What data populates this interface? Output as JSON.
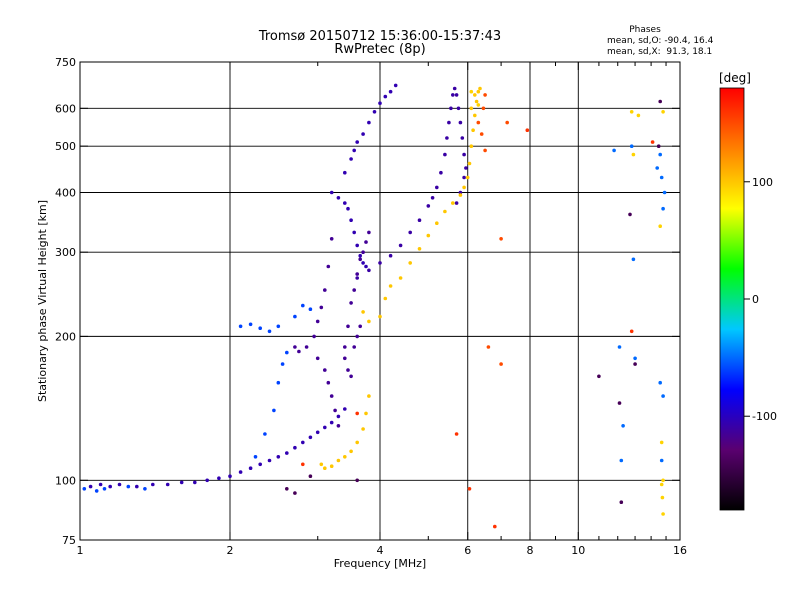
{
  "chart_data": {
    "type": "scatter",
    "title": "Tromsø 20150712 15:36:00-15:37:43",
    "subtitle": "RwPretec (8p)",
    "xlabel": "Frequency [MHz]",
    "ylabel": "Stationary phase Virtual Height [km]",
    "x_scale": "log",
    "y_scale": "log",
    "xlim": [
      1,
      16
    ],
    "ylim": [
      75,
      750
    ],
    "x_ticks": [
      {
        "v": 1,
        "label": "1"
      },
      {
        "v": 2,
        "label": "2"
      },
      {
        "v": 4,
        "label": "4"
      },
      {
        "v": 6,
        "label": "6"
      },
      {
        "v": 8,
        "label": "8"
      },
      {
        "v": 10,
        "label": "10"
      },
      {
        "v": 16,
        "label": "16"
      }
    ],
    "x_minor": [
      3,
      5,
      7,
      9,
      11,
      12,
      13,
      14,
      15
    ],
    "x_grid": [
      2,
      4,
      6,
      8,
      10
    ],
    "y_ticks": [
      {
        "v": 75,
        "label": "75"
      },
      {
        "v": 100,
        "label": "100"
      },
      {
        "v": 200,
        "label": "200"
      },
      {
        "v": 300,
        "label": "300"
      },
      {
        "v": 400,
        "label": "400"
      },
      {
        "v": 500,
        "label": "500"
      },
      {
        "v": 600,
        "label": "600"
      },
      {
        "v": 750,
        "label": "750"
      }
    ],
    "y_grid": [
      100,
      200,
      300,
      400,
      500,
      600
    ],
    "grid": true,
    "stats": {
      "title": "Phases",
      "line_o": "mean, sd,O: -90.4, 16.4",
      "line_x": "mean, sd,X:  91.3, 18.1"
    },
    "colorbar": {
      "label": "[deg]",
      "range": [
        -180,
        180
      ],
      "ticks": [
        {
          "v": 100,
          "label": "100"
        },
        {
          "v": 0,
          "label": "0"
        },
        {
          "v": -100,
          "label": "-100"
        }
      ],
      "colors": [
        "#000000",
        "#5a0070",
        "#0000ff",
        "#00c8ff",
        "#00ff00",
        "#ffff00",
        "#ff8000",
        "#ff0000"
      ]
    },
    "series": [
      {
        "phase": -105,
        "points": [
          [
            1.05,
            97
          ],
          [
            1.1,
            98
          ],
          [
            1.15,
            97
          ],
          [
            1.2,
            98
          ],
          [
            1.3,
            97
          ],
          [
            1.4,
            98
          ],
          [
            1.5,
            98
          ],
          [
            1.6,
            99
          ],
          [
            1.7,
            99
          ],
          [
            1.8,
            100
          ],
          [
            1.9,
            101
          ],
          [
            2.0,
            102
          ],
          [
            2.1,
            104
          ],
          [
            2.2,
            106
          ],
          [
            2.3,
            108
          ],
          [
            2.4,
            110
          ],
          [
            2.5,
            112
          ],
          [
            2.6,
            114
          ],
          [
            2.7,
            117
          ],
          [
            2.8,
            120
          ],
          [
            2.9,
            123
          ],
          [
            3.0,
            126
          ],
          [
            3.1,
            129
          ],
          [
            3.2,
            132
          ],
          [
            3.3,
            136
          ],
          [
            3.4,
            141
          ]
        ]
      },
      {
        "phase": -60,
        "points": [
          [
            1.02,
            96
          ],
          [
            1.08,
            95
          ],
          [
            1.12,
            96
          ],
          [
            1.25,
            97
          ],
          [
            1.35,
            96
          ],
          [
            2.25,
            112
          ],
          [
            2.35,
            125
          ],
          [
            2.45,
            140
          ],
          [
            2.5,
            160
          ],
          [
            2.55,
            175
          ],
          [
            2.6,
            185
          ],
          [
            2.1,
            210
          ],
          [
            2.2,
            212
          ],
          [
            2.3,
            208
          ],
          [
            2.4,
            205
          ],
          [
            2.5,
            210
          ],
          [
            2.7,
            220
          ],
          [
            2.8,
            232
          ],
          [
            2.9,
            228
          ]
        ]
      },
      {
        "phase": -115,
        "points": [
          [
            2.7,
            190
          ],
          [
            2.75,
            186
          ],
          [
            2.85,
            190
          ],
          [
            2.95,
            200
          ],
          [
            3.0,
            215
          ],
          [
            3.05,
            230
          ],
          [
            3.1,
            250
          ],
          [
            3.15,
            280
          ],
          [
            3.2,
            320
          ],
          [
            3.0,
            180
          ],
          [
            3.1,
            170
          ],
          [
            3.15,
            160
          ],
          [
            3.2,
            150
          ],
          [
            3.25,
            140
          ],
          [
            3.3,
            130
          ],
          [
            3.4,
            190
          ],
          [
            3.45,
            210
          ],
          [
            3.5,
            235
          ],
          [
            3.55,
            250
          ],
          [
            3.6,
            270
          ],
          [
            3.65,
            290
          ],
          [
            3.7,
            300
          ],
          [
            3.75,
            315
          ],
          [
            3.8,
            330
          ],
          [
            3.4,
            180
          ],
          [
            3.45,
            170
          ],
          [
            3.5,
            165
          ],
          [
            3.55,
            190
          ],
          [
            3.6,
            200
          ],
          [
            3.65,
            210
          ]
        ]
      },
      {
        "phase": -105,
        "points": [
          [
            3.2,
            400
          ],
          [
            3.3,
            390
          ],
          [
            3.4,
            380
          ],
          [
            3.45,
            370
          ],
          [
            3.5,
            350
          ],
          [
            3.55,
            330
          ],
          [
            3.6,
            310
          ],
          [
            3.65,
            295
          ],
          [
            3.7,
            285
          ],
          [
            3.75,
            280
          ],
          [
            3.4,
            440
          ],
          [
            3.5,
            470
          ],
          [
            3.55,
            490
          ],
          [
            3.6,
            510
          ],
          [
            3.7,
            530
          ],
          [
            3.8,
            560
          ],
          [
            3.9,
            590
          ],
          [
            4.0,
            615
          ],
          [
            4.1,
            635
          ],
          [
            4.2,
            650
          ],
          [
            4.3,
            670
          ]
        ]
      },
      {
        "phase": -110,
        "points": [
          [
            3.6,
            265
          ],
          [
            3.8,
            275
          ],
          [
            4.0,
            285
          ],
          [
            4.2,
            295
          ],
          [
            4.4,
            310
          ],
          [
            4.6,
            330
          ],
          [
            4.8,
            350
          ],
          [
            5.0,
            375
          ],
          [
            5.1,
            390
          ],
          [
            5.2,
            410
          ],
          [
            5.3,
            440
          ],
          [
            5.4,
            480
          ],
          [
            5.45,
            520
          ],
          [
            5.5,
            560
          ],
          [
            5.55,
            600
          ],
          [
            5.6,
            640
          ],
          [
            5.65,
            660
          ],
          [
            5.7,
            640
          ],
          [
            5.75,
            600
          ],
          [
            5.8,
            560
          ],
          [
            5.85,
            520
          ],
          [
            5.9,
            480
          ],
          [
            5.95,
            450
          ],
          [
            5.9,
            430
          ],
          [
            5.8,
            400
          ],
          [
            5.7,
            380
          ]
        ]
      },
      {
        "phase": 100,
        "points": [
          [
            3.05,
            108
          ],
          [
            3.1,
            106
          ],
          [
            3.2,
            107
          ],
          [
            3.3,
            110
          ],
          [
            3.4,
            112
          ],
          [
            3.5,
            115
          ],
          [
            3.6,
            120
          ],
          [
            3.7,
            128
          ],
          [
            3.75,
            138
          ],
          [
            3.8,
            150
          ],
          [
            3.7,
            225
          ],
          [
            3.8,
            215
          ],
          [
            4.0,
            220
          ],
          [
            4.1,
            240
          ],
          [
            4.2,
            255
          ],
          [
            4.4,
            265
          ],
          [
            4.6,
            285
          ],
          [
            4.8,
            305
          ],
          [
            5.0,
            325
          ],
          [
            5.2,
            345
          ],
          [
            5.4,
            365
          ],
          [
            5.6,
            380
          ],
          [
            5.8,
            395
          ],
          [
            5.9,
            410
          ],
          [
            6.0,
            430
          ],
          [
            6.05,
            460
          ],
          [
            6.1,
            500
          ],
          [
            6.15,
            540
          ],
          [
            6.2,
            580
          ],
          [
            6.25,
            620
          ],
          [
            6.3,
            650
          ],
          [
            6.35,
            660
          ],
          [
            6.2,
            640
          ],
          [
            6.1,
            600
          ]
        ]
      },
      {
        "phase": 150,
        "points": [
          [
            6.3,
            560
          ],
          [
            6.4,
            530
          ],
          [
            6.5,
            490
          ],
          [
            6.45,
            600
          ],
          [
            6.5,
            640
          ],
          [
            7.2,
            560
          ],
          [
            7.0,
            320
          ],
          [
            6.6,
            190
          ],
          [
            7.0,
            175
          ]
        ]
      },
      {
        "phase": -50,
        "points": [
          [
            11.8,
            490
          ],
          [
            12.8,
            500
          ],
          [
            12.9,
            290
          ],
          [
            14.4,
            450
          ],
          [
            14.6,
            480
          ],
          [
            14.7,
            430
          ],
          [
            14.8,
            370
          ],
          [
            14.9,
            400
          ],
          [
            12.1,
            190
          ],
          [
            13.0,
            180
          ],
          [
            14.6,
            160
          ],
          [
            14.8,
            150
          ],
          [
            12.3,
            130
          ],
          [
            12.2,
            110
          ],
          [
            14.7,
            110
          ]
        ]
      },
      {
        "phase": 95,
        "points": [
          [
            12.8,
            590
          ],
          [
            13.2,
            580
          ],
          [
            14.8,
            590
          ],
          [
            12.9,
            480
          ],
          [
            14.6,
            340
          ],
          [
            14.7,
            120
          ],
          [
            14.8,
            100
          ],
          [
            14.7,
            98
          ],
          [
            14.75,
            92
          ],
          [
            14.8,
            85
          ],
          [
            6.3,
            610
          ],
          [
            6.1,
            650
          ]
        ]
      },
      {
        "phase": -140,
        "points": [
          [
            12.7,
            360
          ],
          [
            14.5,
            500
          ],
          [
            14.6,
            620
          ],
          [
            11.0,
            165
          ],
          [
            12.1,
            145
          ],
          [
            12.2,
            90
          ],
          [
            13.0,
            175
          ],
          [
            3.6,
            100
          ],
          [
            2.6,
            96
          ],
          [
            2.7,
            94
          ],
          [
            2.9,
            102
          ]
        ]
      },
      {
        "phase": 160,
        "points": [
          [
            12.8,
            205
          ],
          [
            14.1,
            510
          ],
          [
            7.9,
            540
          ],
          [
            5.7,
            125
          ],
          [
            6.05,
            96
          ],
          [
            6.8,
            80
          ],
          [
            3.6,
            138
          ],
          [
            2.8,
            108
          ]
        ]
      }
    ]
  }
}
